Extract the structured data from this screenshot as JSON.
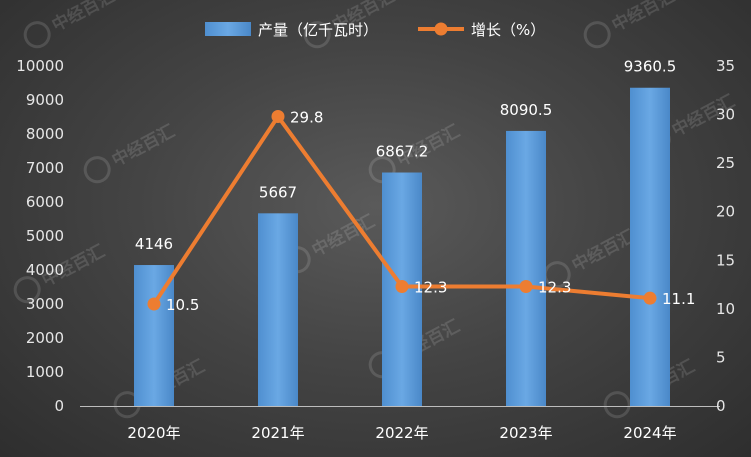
{
  "chart_data": {
    "type": "bar",
    "categories": [
      "2020年",
      "2021年",
      "2022年",
      "2023年",
      "2024年"
    ],
    "series": [
      {
        "name": "产量（亿千瓦时）",
        "type": "bar",
        "axis": "left",
        "values": [
          4146,
          5667,
          6867.2,
          8090.5,
          9360.5
        ],
        "labels": [
          "4146",
          "5667",
          "6867.2",
          "8090.5",
          "9360.5"
        ],
        "color": "#5b9bd5"
      },
      {
        "name": "增长（%）",
        "type": "line",
        "axis": "right",
        "values": [
          10.5,
          29.8,
          12.3,
          12.3,
          11.1
        ],
        "labels": [
          "10.5",
          "29.8",
          "12.3",
          "12.3",
          "11.1"
        ],
        "color": "#ed7d31"
      }
    ],
    "y_left": {
      "min": 0,
      "max": 10000,
      "ticks": [
        "0",
        "1000",
        "2000",
        "3000",
        "4000",
        "5000",
        "6000",
        "7000",
        "8000",
        "9000",
        "10000"
      ]
    },
    "y_right": {
      "min": 0,
      "max": 35,
      "ticks": [
        "0",
        "5",
        "10",
        "15",
        "20",
        "25",
        "30",
        "35"
      ]
    },
    "grid": false,
    "legend": "top-center"
  },
  "watermark": {
    "text": "中经百汇"
  }
}
